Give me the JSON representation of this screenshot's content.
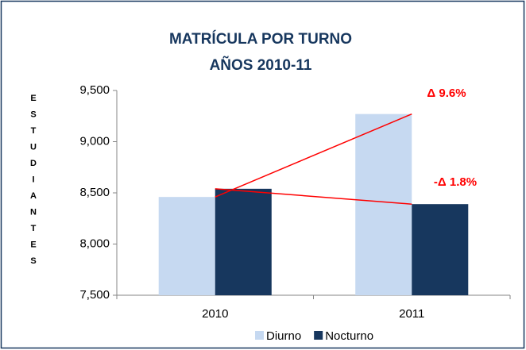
{
  "chart_data": {
    "type": "bar",
    "title": [
      "MATRÍCULA POR TURNO",
      "AÑOS 2010-11"
    ],
    "y_label": "ESTUDIANTES",
    "categories": [
      "2010",
      "2011"
    ],
    "series": [
      {
        "name": "Diurno",
        "color": "#c6d9f1",
        "values": [
          8460,
          9270
        ]
      },
      {
        "name": "Nocturno",
        "color": "#17375e",
        "values": [
          8540,
          8390
        ]
      }
    ],
    "annotations": [
      {
        "text": "Δ 9.6%",
        "color": "#ff0000",
        "series": 0
      },
      {
        "text": "-Δ  1.8%",
        "color": "#ff0000",
        "series": 1
      }
    ],
    "ylim": [
      7500,
      9500
    ],
    "yticks": [
      {
        "value": 7500,
        "label": "7,500"
      },
      {
        "value": 8000,
        "label": "8,000"
      },
      {
        "value": 8500,
        "label": "8,500"
      },
      {
        "value": 9000,
        "label": "9,000"
      },
      {
        "value": 9500,
        "label": "9,500"
      }
    ],
    "legend": "bottom"
  }
}
